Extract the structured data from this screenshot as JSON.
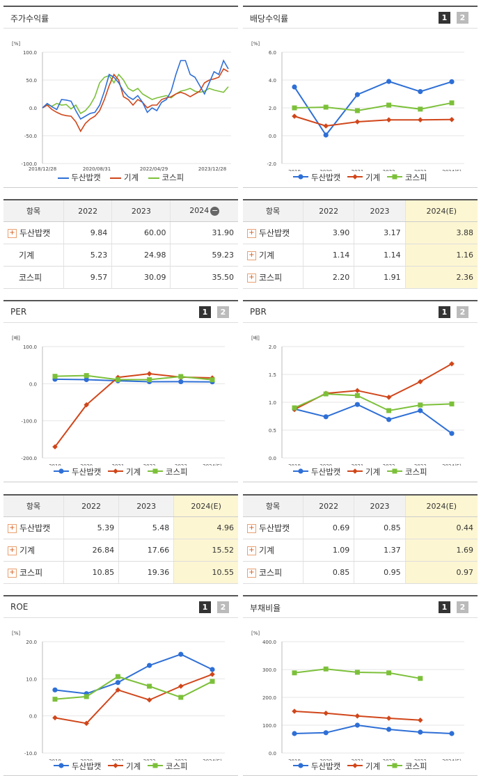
{
  "colors": {
    "s1": "#2e6fd6",
    "s2": "#d0461a",
    "s3": "#7cc03a"
  },
  "legend": [
    "두산밥캣",
    "기계",
    "코스피"
  ],
  "pages": {
    "p1": "1",
    "p2": "2"
  },
  "panels": {
    "stock": {
      "title": "주가수익률",
      "unit": "[%]"
    },
    "div": {
      "title": "배당수익률",
      "unit": "[%]"
    },
    "per": {
      "title": "PER",
      "unit": "[배]"
    },
    "pbr": {
      "title": "PBR",
      "unit": "[배]"
    },
    "roe": {
      "title": "ROE",
      "unit": "[%]"
    },
    "debt": {
      "title": "부채비율",
      "unit": "[%]"
    }
  },
  "tables": {
    "stock": {
      "header": [
        "항목",
        "2022",
        "2023",
        "2024"
      ],
      "rows": [
        {
          "name": "두산밥캣",
          "plus": true,
          "v": [
            "9.84",
            "60.00",
            "31.90"
          ]
        },
        {
          "name": "기계",
          "plus": false,
          "v": [
            "5.23",
            "24.98",
            "59.23"
          ]
        },
        {
          "name": "코스피",
          "plus": false,
          "v": [
            "9.57",
            "30.09",
            "35.50"
          ]
        }
      ]
    },
    "div": {
      "header": [
        "항목",
        "2022",
        "2023",
        "2024(E)"
      ],
      "rows": [
        {
          "name": "두산밥캣",
          "plus": true,
          "v": [
            "3.90",
            "3.17",
            "3.88"
          ]
        },
        {
          "name": "기계",
          "plus": true,
          "v": [
            "1.14",
            "1.14",
            "1.16"
          ]
        },
        {
          "name": "코스피",
          "plus": true,
          "v": [
            "2.20",
            "1.91",
            "2.36"
          ]
        }
      ]
    },
    "per": {
      "header": [
        "항목",
        "2022",
        "2023",
        "2024(E)"
      ],
      "rows": [
        {
          "name": "두산밥캣",
          "plus": true,
          "v": [
            "5.39",
            "5.48",
            "4.96"
          ]
        },
        {
          "name": "기계",
          "plus": true,
          "v": [
            "26.84",
            "17.66",
            "15.52"
          ]
        },
        {
          "name": "코스피",
          "plus": true,
          "v": [
            "10.85",
            "19.36",
            "10.55"
          ]
        }
      ]
    },
    "pbr": {
      "header": [
        "항목",
        "2022",
        "2023",
        "2024(E)"
      ],
      "rows": [
        {
          "name": "두산밥캣",
          "plus": true,
          "v": [
            "0.69",
            "0.85",
            "0.44"
          ]
        },
        {
          "name": "기계",
          "plus": true,
          "v": [
            "1.09",
            "1.37",
            "1.69"
          ]
        },
        {
          "name": "코스피",
          "plus": true,
          "v": [
            "0.85",
            "0.95",
            "0.97"
          ]
        }
      ]
    }
  },
  "chart_data": [
    {
      "id": "stock",
      "type": "line",
      "title": "주가수익률",
      "ylim": [
        -100,
        100
      ],
      "yticks": [
        "100.0",
        "50.0",
        "0.0",
        "-50.0",
        "-100.0"
      ],
      "xticks": [
        "2018/12/28",
        "2020/08/31",
        "2022/04/29",
        "2023/12/28"
      ],
      "series": [
        {
          "name": "두산밥캣",
          "values": [
            0,
            8,
            2,
            -3,
            15,
            14,
            12,
            -5,
            -20,
            -15,
            -10,
            -8,
            5,
            30,
            60,
            55,
            45,
            30,
            20,
            15,
            22,
            10,
            -8,
            0,
            -5,
            10,
            15,
            30,
            60,
            85,
            85,
            60,
            55,
            40,
            25,
            45,
            65,
            60,
            85,
            70
          ]
        },
        {
          "name": "기계",
          "values": [
            0,
            5,
            -3,
            -8,
            -12,
            -14,
            -15,
            -25,
            -42,
            -28,
            -20,
            -15,
            -5,
            15,
            40,
            60,
            50,
            20,
            15,
            5,
            15,
            10,
            0,
            5,
            5,
            15,
            18,
            20,
            25,
            28,
            25,
            20,
            25,
            30,
            45,
            50,
            52,
            55,
            70,
            65
          ]
        },
        {
          "name": "코스피",
          "values": [
            0,
            6,
            3,
            8,
            5,
            6,
            -2,
            5,
            -10,
            -5,
            5,
            20,
            45,
            55,
            58,
            45,
            60,
            50,
            35,
            30,
            35,
            25,
            20,
            15,
            18,
            20,
            22,
            18,
            25,
            30,
            32,
            35,
            30,
            28,
            30,
            35,
            32,
            30,
            28,
            38
          ]
        }
      ]
    },
    {
      "id": "div",
      "type": "line",
      "title": "배당수익률",
      "categories": [
        "2019",
        "2020",
        "2021",
        "2022",
        "2023",
        "2024(E)"
      ],
      "ylim": [
        -2,
        6
      ],
      "yticks": [
        "6.0",
        "4.0",
        "2.0",
        "0.0",
        "-2.0"
      ],
      "series": [
        {
          "name": "두산밥캣",
          "values": [
            3.5,
            0.05,
            2.95,
            3.9,
            3.17,
            3.88
          ]
        },
        {
          "name": "기계",
          "values": [
            1.4,
            0.7,
            1.0,
            1.14,
            1.14,
            1.16
          ]
        },
        {
          "name": "코스피",
          "values": [
            2.0,
            2.05,
            1.8,
            2.2,
            1.91,
            2.36
          ]
        }
      ]
    },
    {
      "id": "per",
      "type": "line",
      "title": "PER",
      "categories": [
        "2019",
        "2020",
        "2021",
        "2022",
        "2023",
        "2024(E)"
      ],
      "ylim": [
        -200,
        100
      ],
      "yticks": [
        "100.0",
        "0.0",
        "-100.0",
        "-200.0"
      ],
      "series": [
        {
          "name": "두산밥캣",
          "values": [
            12,
            11,
            8,
            5.39,
            5.48,
            4.96
          ]
        },
        {
          "name": "기계",
          "values": [
            -170,
            -57,
            17,
            26.84,
            17.66,
            15.52
          ]
        },
        {
          "name": "코스피",
          "values": [
            20,
            22,
            11,
            10.85,
            19.36,
            10.55
          ]
        }
      ]
    },
    {
      "id": "pbr",
      "type": "line",
      "title": "PBR",
      "categories": [
        "2019",
        "2020",
        "2021",
        "2022",
        "2023",
        "2024(E)"
      ],
      "ylim": [
        0,
        2
      ],
      "yticks": [
        "2.0",
        "1.5",
        "1.0",
        "0.5",
        "0.0"
      ],
      "series": [
        {
          "name": "두산밥캣",
          "values": [
            0.88,
            0.74,
            0.96,
            0.69,
            0.85,
            0.44
          ]
        },
        {
          "name": "기계",
          "values": [
            0.87,
            1.16,
            1.21,
            1.09,
            1.37,
            1.69
          ]
        },
        {
          "name": "코스피",
          "values": [
            0.9,
            1.15,
            1.12,
            0.85,
            0.95,
            0.97
          ]
        }
      ]
    },
    {
      "id": "roe",
      "type": "line",
      "title": "ROE",
      "categories": [
        "2019",
        "2020",
        "2021",
        "2022",
        "2023",
        "2024(E)"
      ],
      "ylim": [
        -10,
        20
      ],
      "yticks": [
        "20.0",
        "10.0",
        "0.0",
        "-10.0"
      ],
      "series": [
        {
          "name": "두산밥캣",
          "values": [
            7,
            6,
            9,
            13.6,
            16.6,
            12.5
          ]
        },
        {
          "name": "기계",
          "values": [
            -0.5,
            -2,
            7,
            4.3,
            8,
            11.2
          ]
        },
        {
          "name": "코스피",
          "values": [
            4.5,
            5.2,
            10.6,
            8,
            5,
            9.3
          ]
        }
      ]
    },
    {
      "id": "debt",
      "type": "line",
      "title": "부채비율",
      "categories": [
        "2019",
        "2020",
        "2021",
        "2022",
        "2023",
        "2024(E)"
      ],
      "ylim": [
        0,
        400
      ],
      "yticks": [
        "400.0",
        "300.0",
        "200.0",
        "100.0",
        "0.0"
      ],
      "series": [
        {
          "name": "두산밥캣",
          "values": [
            70,
            73,
            100,
            85,
            75,
            70
          ]
        },
        {
          "name": "기계",
          "values": [
            150,
            143,
            133,
            125,
            118,
            null
          ]
        },
        {
          "name": "코스피",
          "values": [
            288,
            302,
            290,
            288,
            268,
            null
          ]
        }
      ]
    }
  ]
}
